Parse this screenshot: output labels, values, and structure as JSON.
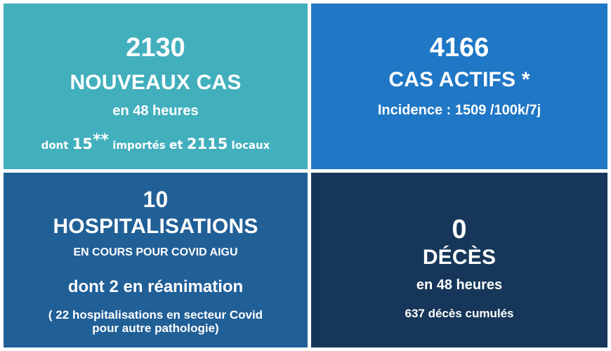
{
  "cards": {
    "new_cases": {
      "number": "2130",
      "title": "NOUVEAUX CAS",
      "subtitle": "en 48 heures",
      "detail": {
        "prefix": "dont",
        "imported_count": "15",
        "imported_mark": "**",
        "imported_label": "importés",
        "conjunction": "et",
        "local_count": "2115",
        "local_label": "locaux"
      }
    },
    "active_cases": {
      "number": "4166",
      "title": "CAS ACTIFS *",
      "subtitle": "Incidence : 1509 /100k/7j"
    },
    "hospitalisations": {
      "number": "10",
      "title": "HOSPITALISATIONS",
      "subtitle": "EN COURS POUR COVID AIGU",
      "icu": "dont 2 en réanimation",
      "note_line1": "( 22 hospitalisations en secteur Covid",
      "note_line2": "pour autre pathologie)"
    },
    "deaths": {
      "number": "0",
      "title": "DÉCÈS",
      "subtitle": "en 48 heures",
      "cumulative": "637 décès cumulés"
    }
  },
  "colors": {
    "new_cases_bg": "#42afbd",
    "active_cases_bg": "#1f77c5",
    "hospitalisations_bg": "#215f97",
    "deaths_bg": "#163759",
    "text": "#ffffff"
  }
}
